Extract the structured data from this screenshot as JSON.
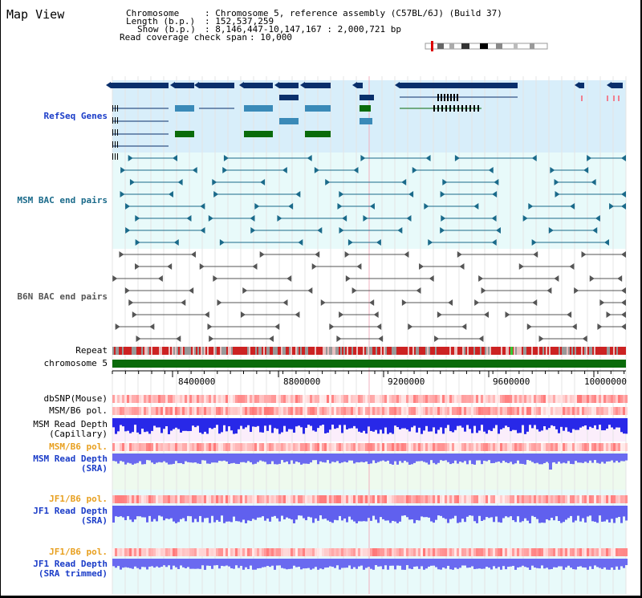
{
  "title": "Map View",
  "info": {
    "chromosome_label": "Chromosome",
    "chromosome_value": ": Chromosome 5, reference assembly (C57BL/6J) (Build 37)",
    "length_label": "Length (b.p.)",
    "length_value": ": 152,537,259",
    "show_label": "Show (b.p.)",
    "show_value": ": 8,146,447-10,147,167 : 2,000,721 bp",
    "coverage_label": "Read coverage check span",
    "coverage_value": ": 10,000"
  },
  "tracks": {
    "refseq": "RefSeq Genes",
    "msm_bac": "MSM BAC end pairs",
    "b6n_bac": "B6N BAC end pairs",
    "repeat": "Repeat",
    "chrom": "chromosome 5",
    "dbsnp": "dbSNP(Mouse)",
    "msm_pol1": "MSM/B6 pol.",
    "msm_depth_cap": "MSM Read Depth\n(Capillary)",
    "msm_pol2": "MSM/B6 pol.",
    "msm_depth_sra": "MSM Read Depth\n(SRA)",
    "jf1_pol1": "JF1/B6 pol.",
    "jf1_depth_sra": "JF1 Read Depth\n(SRA)",
    "jf1_pol2": "JF1/B6 pol.",
    "jf1_depth_trim": "JF1 Read Depth\n(SRA trimmed)"
  },
  "axis_ticks": [
    "8400000",
    "8800000",
    "9200000",
    "9600000",
    "10000000"
  ],
  "colors": {
    "refseq_dark": "#0a2f6b",
    "refseq_mid": "#3a8ab8",
    "refseq_green": "#0a6b0a",
    "refseq_bg": "#d8eefa",
    "bac_bg": "#e8fafa",
    "msm_line": "#1a6a8a",
    "b6n_line": "#555555",
    "label_blue": "#1a3cc8",
    "label_teal": "#1a6a8a",
    "label_orange": "#e8a020",
    "repeat_red": "#cc2222",
    "chrom_green": "#0a6b0a"
  }
}
